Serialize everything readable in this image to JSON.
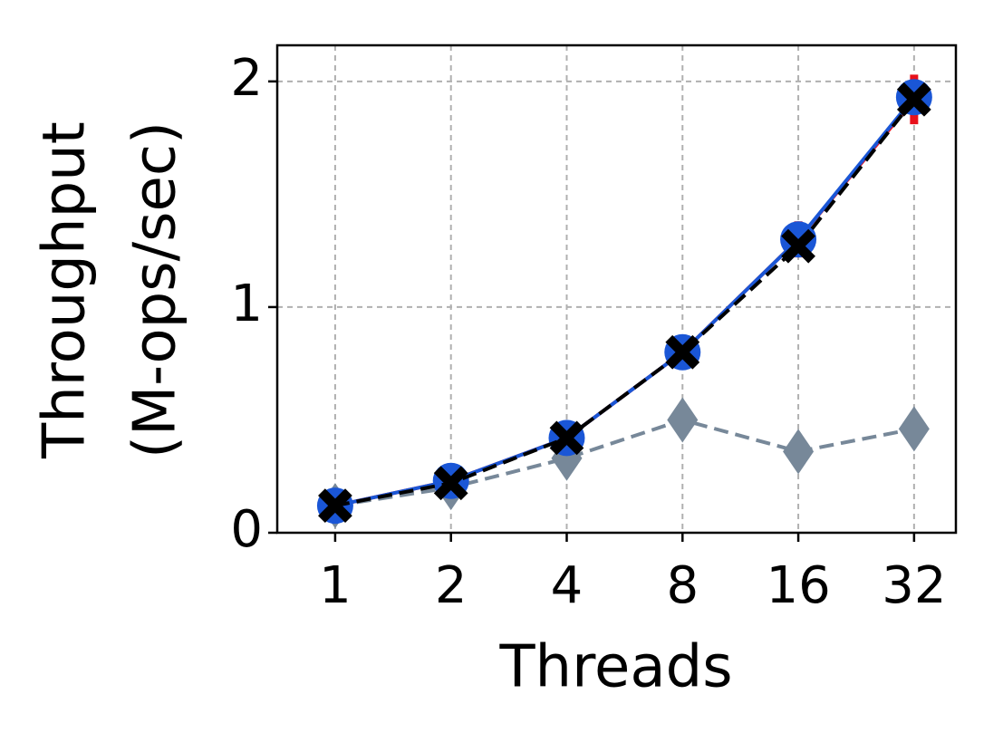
{
  "chart_data": {
    "type": "line",
    "xlabel": "Threads",
    "ylabel": [
      "Throughput",
      "(M-ops/sec)"
    ],
    "x": [
      1,
      2,
      4,
      8,
      16,
      32
    ],
    "xscale": "log2",
    "xlim": [
      0.707,
      41.1
    ],
    "xticks": [
      1,
      2,
      4,
      8,
      16,
      32
    ],
    "ylim": [
      0,
      2.16
    ],
    "yticks": [
      0,
      1,
      2
    ],
    "grid": true,
    "series": [
      {
        "color": "#778899",
        "marker": "diamond",
        "dash": true,
        "values": [
          0.12,
          0.2,
          0.33,
          0.5,
          0.36,
          0.46
        ]
      },
      {
        "color": "#e8101a",
        "marker": "square",
        "dash": false,
        "values": [
          0.12,
          0.23,
          0.42,
          0.8,
          1.3,
          1.92
        ],
        "errors": [
          0.01,
          0.01,
          0.01,
          0.02,
          0.08,
          0.11
        ]
      },
      {
        "color": "#1a56d6",
        "marker": "circle",
        "dash": false,
        "values": [
          0.12,
          0.23,
          0.42,
          0.8,
          1.3,
          1.93
        ]
      },
      {
        "color": "#000000",
        "marker": "x",
        "dash": true,
        "values": [
          0.12,
          0.22,
          0.42,
          0.8,
          1.27,
          1.92
        ]
      }
    ]
  }
}
